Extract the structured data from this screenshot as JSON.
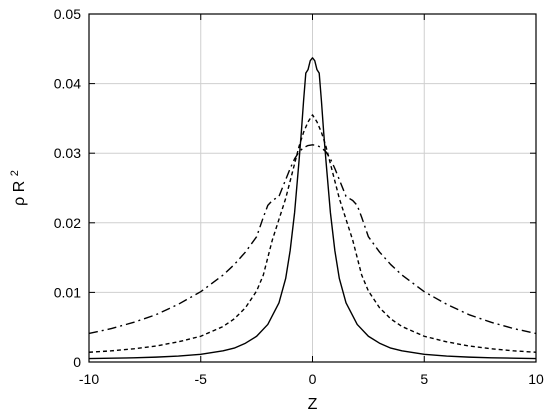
{
  "chart_data": {
    "type": "line",
    "title": "",
    "xlabel": "Z",
    "ylabel": "ρ R",
    "ylabel_superscript": "2",
    "xlim": [
      -10,
      10
    ],
    "ylim": [
      0,
      0.05
    ],
    "x_ticks": [
      -10,
      -5,
      0,
      5,
      10
    ],
    "y_ticks": [
      0,
      0.01,
      0.02,
      0.03,
      0.04,
      0.05
    ],
    "x_tick_labels": [
      "-10",
      "-5",
      "0",
      "5",
      "10"
    ],
    "y_tick_labels": [
      "0",
      "0.01",
      "0.02",
      "0.03",
      "0.04",
      "0.05"
    ],
    "grid": true,
    "legend": "none",
    "series": [
      {
        "style": "solid",
        "color": "#000000",
        "x": [
          -10,
          -9,
          -8,
          -7,
          -6,
          -5,
          -4,
          -3.5,
          -3,
          -2.5,
          -2,
          -1.5,
          -1.2,
          -1,
          -0.8,
          -0.6,
          -0.5,
          -0.4,
          -0.3,
          -0.2,
          -0.1,
          0,
          0.1,
          0.2,
          0.3,
          0.4,
          0.5,
          0.6,
          0.8,
          1,
          1.2,
          1.5,
          2,
          2.5,
          3,
          3.5,
          4,
          5,
          6,
          7,
          8,
          9,
          10
        ],
        "y": [
          0.0005,
          0.00055,
          0.0006,
          0.0007,
          0.00085,
          0.0011,
          0.0016,
          0.002,
          0.0027,
          0.0037,
          0.0054,
          0.0085,
          0.012,
          0.016,
          0.0215,
          0.029,
          0.033,
          0.0375,
          0.0415,
          0.042,
          0.0433,
          0.0437,
          0.0433,
          0.042,
          0.0415,
          0.0375,
          0.033,
          0.029,
          0.0215,
          0.016,
          0.012,
          0.0085,
          0.0054,
          0.0037,
          0.0027,
          0.002,
          0.0016,
          0.0011,
          0.00085,
          0.0007,
          0.0006,
          0.00055,
          0.0005
        ]
      },
      {
        "style": "dashed",
        "color": "#000000",
        "x": [
          -10,
          -9,
          -8,
          -7,
          -6,
          -5,
          -4,
          -3.5,
          -3,
          -2.5,
          -2.2,
          -2,
          -1.8,
          -1.5,
          -1.2,
          -1,
          -0.8,
          -0.6,
          -0.4,
          -0.2,
          0,
          0.2,
          0.4,
          0.6,
          0.8,
          1,
          1.2,
          1.5,
          1.8,
          2,
          2.2,
          2.5,
          3,
          3.5,
          4,
          5,
          6,
          7,
          8,
          9,
          10
        ],
        "y": [
          0.0014,
          0.0016,
          0.0019,
          0.0023,
          0.0029,
          0.0037,
          0.0051,
          0.0062,
          0.0078,
          0.0102,
          0.0125,
          0.015,
          0.0175,
          0.0205,
          0.0235,
          0.026,
          0.0285,
          0.031,
          0.033,
          0.0345,
          0.0355,
          0.0345,
          0.033,
          0.031,
          0.0285,
          0.026,
          0.0235,
          0.0205,
          0.0175,
          0.015,
          0.0125,
          0.0102,
          0.0078,
          0.0062,
          0.0051,
          0.0037,
          0.0029,
          0.0023,
          0.0019,
          0.0016,
          0.0014
        ]
      },
      {
        "style": "dash-dot",
        "color": "#000000",
        "x": [
          -10,
          -9,
          -8,
          -7,
          -6,
          -5,
          -4,
          -3.5,
          -3,
          -2.5,
          -2.2,
          -2,
          -1.8,
          -1.5,
          -1.2,
          -1,
          -0.8,
          -0.6,
          -0.4,
          -0.2,
          0,
          0.2,
          0.4,
          0.6,
          0.8,
          1,
          1.2,
          1.5,
          1.8,
          2,
          2.2,
          2.5,
          3,
          3.5,
          4,
          5,
          6,
          7,
          8,
          9,
          10
        ],
        "y": [
          0.0041,
          0.0048,
          0.0057,
          0.0068,
          0.0083,
          0.0101,
          0.0125,
          0.014,
          0.0158,
          0.018,
          0.0208,
          0.0225,
          0.0232,
          0.0238,
          0.0262,
          0.0278,
          0.0292,
          0.0302,
          0.0308,
          0.0311,
          0.0312,
          0.0311,
          0.0308,
          0.0302,
          0.0292,
          0.0278,
          0.0262,
          0.0238,
          0.0232,
          0.0225,
          0.0208,
          0.018,
          0.0158,
          0.014,
          0.0125,
          0.0101,
          0.0083,
          0.0068,
          0.0057,
          0.0048,
          0.0041
        ]
      }
    ]
  }
}
